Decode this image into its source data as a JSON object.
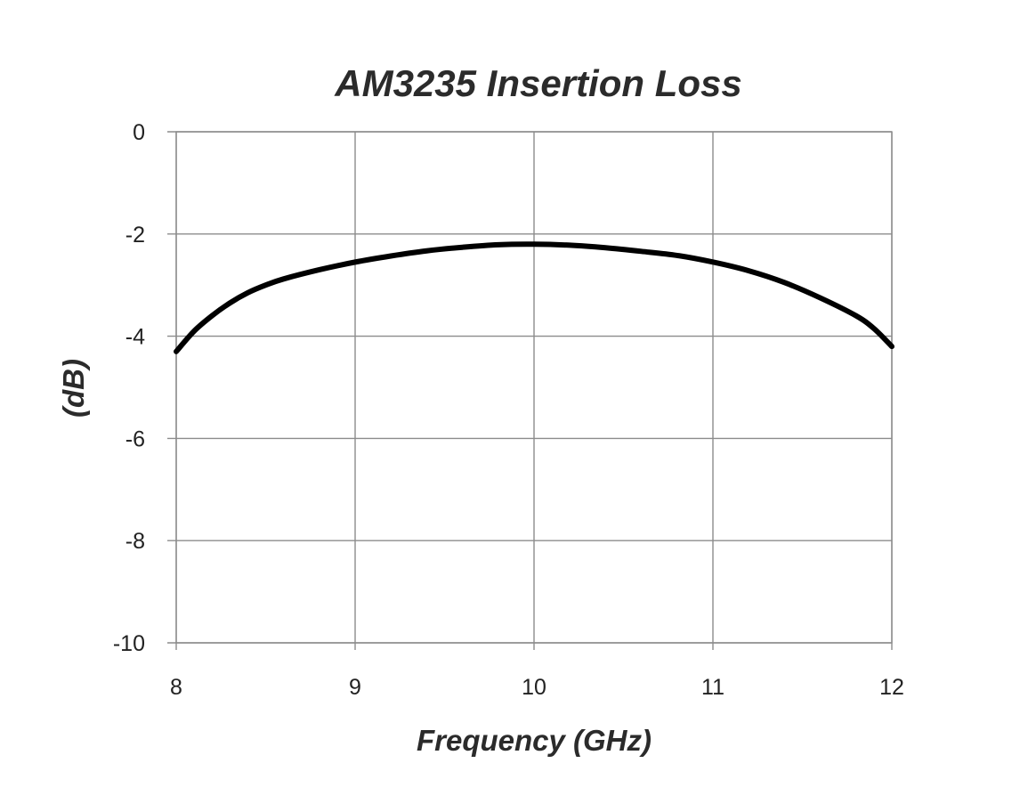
{
  "chart_data": {
    "type": "line",
    "title": "AM3235 Insertion Loss",
    "xlabel": "Frequency (GHz)",
    "ylabel": "(dB)",
    "xlim": [
      8,
      12
    ],
    "ylim": [
      -10,
      0
    ],
    "x_ticks": [
      "8",
      "9",
      "10",
      "11",
      "12"
    ],
    "y_ticks": [
      "0",
      "-2",
      "-4",
      "-6",
      "-8",
      "-10"
    ],
    "grid": true,
    "legend": "none",
    "series": [
      {
        "color": "#000000",
        "x": [
          8.0,
          8.1,
          8.2,
          8.3,
          8.4,
          8.5,
          8.6,
          8.8,
          9.0,
          9.2,
          9.4,
          9.6,
          9.8,
          10.0,
          10.2,
          10.4,
          10.6,
          10.8,
          11.0,
          11.2,
          11.4,
          11.6,
          11.8,
          11.9,
          12.0
        ],
        "values": [
          -4.3,
          -3.9,
          -3.6,
          -3.35,
          -3.15,
          -3.0,
          -2.88,
          -2.7,
          -2.55,
          -2.43,
          -2.33,
          -2.26,
          -2.21,
          -2.2,
          -2.22,
          -2.27,
          -2.34,
          -2.42,
          -2.55,
          -2.72,
          -2.95,
          -3.25,
          -3.6,
          -3.85,
          -4.2
        ]
      }
    ]
  }
}
